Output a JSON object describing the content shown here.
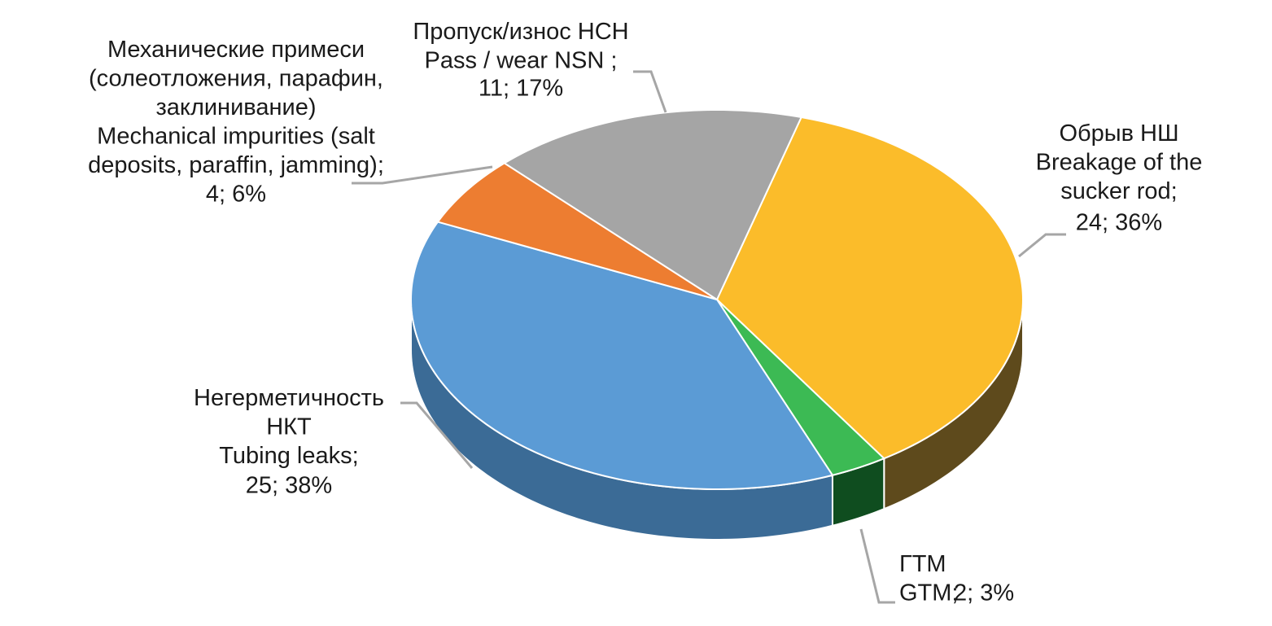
{
  "chart_data": {
    "type": "pie3d",
    "categories": [
      "Обрыв НШ\nBreakage of the\nsucker rod;",
      "ГТМ\nGTM;",
      "Негерметичность\nНКТ\nTubing leaks;",
      "Механические примеси\n(солеотложения, парафин,\nзаклинивание)\nMechanical impurities (salt\ndeposits, paraffin, jamming);",
      "Пропуск/износ НСН\nPass / wear NSN ;"
    ],
    "values": [
      24,
      2,
      25,
      4,
      11
    ],
    "value_labels": [
      "24; 36%",
      "2; 3%",
      "25; 38%",
      "4; 6%",
      "11; 17%"
    ],
    "colors": [
      "#fbbc2a",
      "#3cba54",
      "#5b9bd5",
      "#ed7d31",
      "#a5a5a5"
    ],
    "side_colors": [
      "#5e4a1c",
      "#0f4d1f",
      "#3b6b96",
      "#a9561f",
      "#6e6e6e"
    ]
  }
}
